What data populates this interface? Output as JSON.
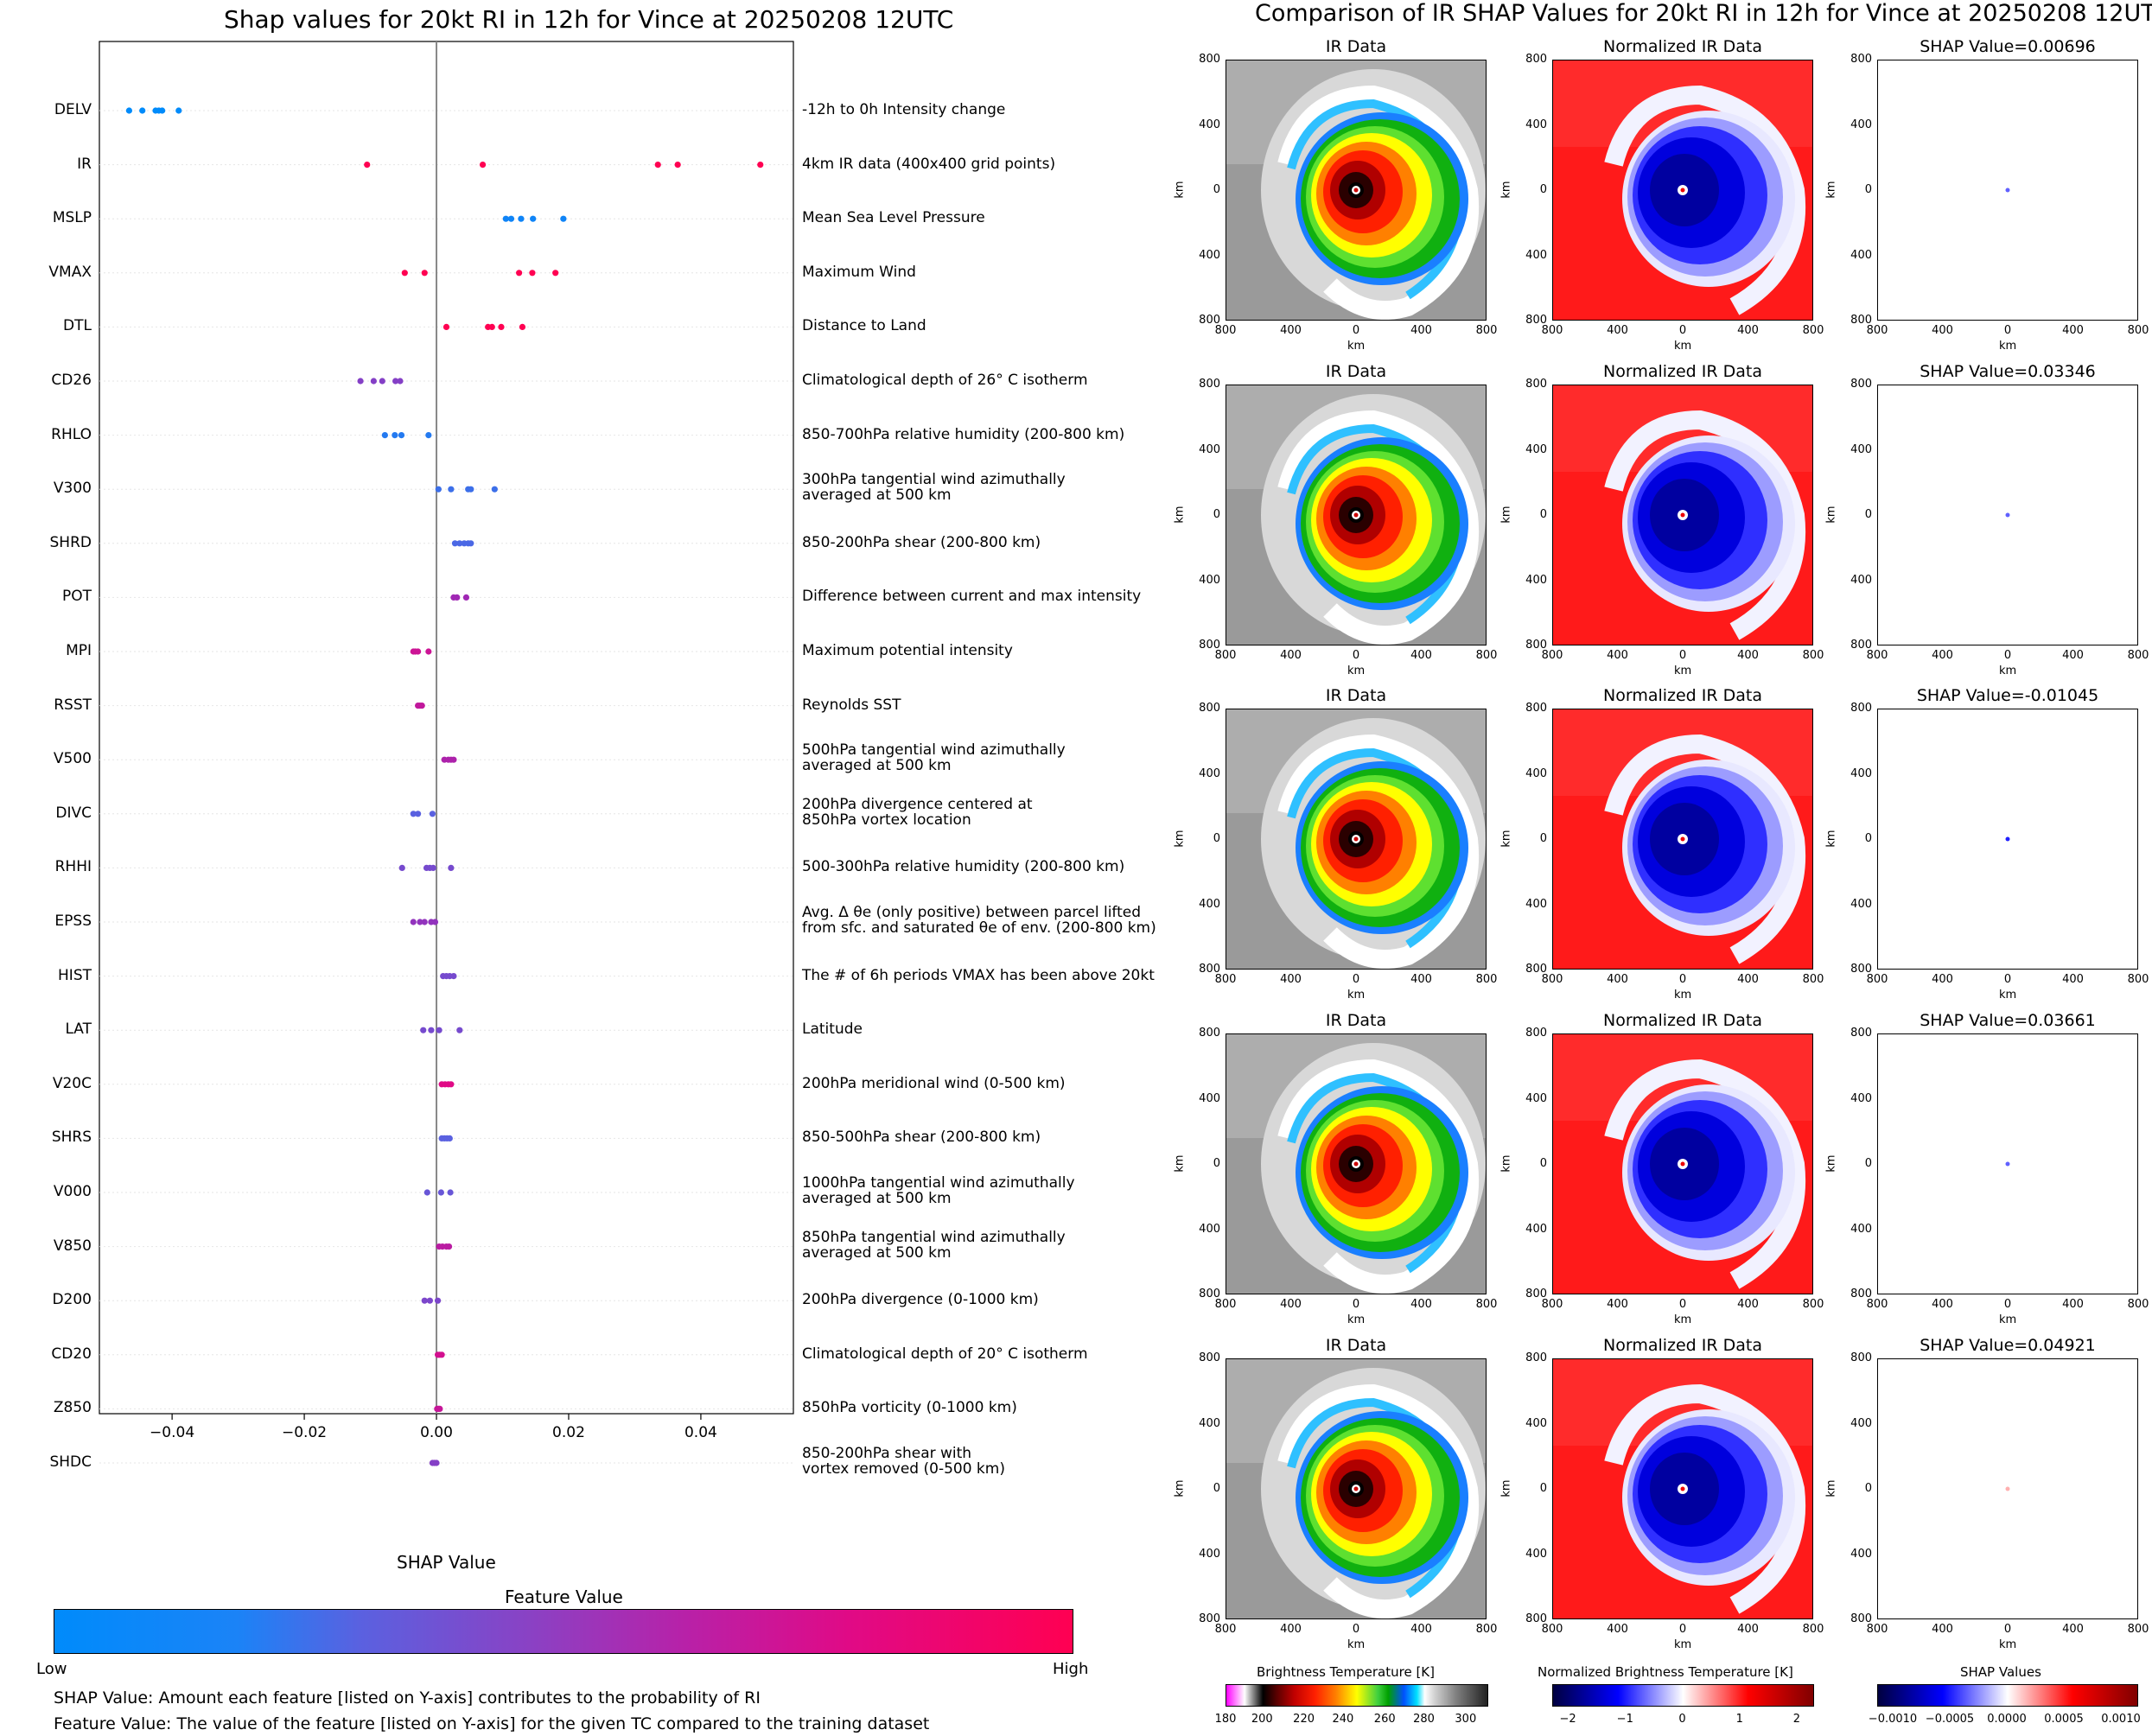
{
  "left": {
    "title": "Shap values for 20kt RI in 12h for Vince at 20250208 12UTC",
    "xlabel": "SHAP Value",
    "xticks": [
      "−0.04",
      "−0.02",
      "0.00",
      "0.02",
      "0.04"
    ],
    "colorbar": {
      "title": "Feature Value",
      "low": "Low",
      "high": "High"
    },
    "notes": [
      "SHAP Value: Amount each feature [listed on Y-axis] contributes to the probability of RI",
      "Feature Value: The value of the feature [listed on Y-axis] for the given TC compared to the training dataset"
    ],
    "features": [
      {
        "name": "DELV",
        "desc": [
          "-12h to 0h Intensity change"
        ]
      },
      {
        "name": "IR",
        "desc": [
          "4km IR data (400x400 grid points)"
        ]
      },
      {
        "name": "MSLP",
        "desc": [
          "Mean Sea Level Pressure"
        ]
      },
      {
        "name": "VMAX",
        "desc": [
          "Maximum Wind"
        ]
      },
      {
        "name": "DTL",
        "desc": [
          "Distance to Land"
        ]
      },
      {
        "name": "CD26",
        "desc": [
          "Climatological depth of 26° C isotherm"
        ]
      },
      {
        "name": "RHLO",
        "desc": [
          "850-700hPa relative humidity (200-800 km)"
        ]
      },
      {
        "name": "V300",
        "desc": [
          "300hPa tangential wind azimuthally",
          "averaged at 500 km"
        ]
      },
      {
        "name": "SHRD",
        "desc": [
          "850-200hPa shear (200-800 km)"
        ]
      },
      {
        "name": "POT",
        "desc": [
          "Difference between current and max intensity"
        ]
      },
      {
        "name": "MPI",
        "desc": [
          "Maximum potential intensity"
        ]
      },
      {
        "name": "RSST",
        "desc": [
          "Reynolds SST"
        ]
      },
      {
        "name": "V500",
        "desc": [
          "500hPa tangential wind azimuthally",
          "averaged at 500 km"
        ]
      },
      {
        "name": "DIVC",
        "desc": [
          "200hPa divergence centered at",
          "850hPa vortex location"
        ]
      },
      {
        "name": "RHHI",
        "desc": [
          "500-300hPa relative humidity (200-800 km)"
        ]
      },
      {
        "name": "EPSS",
        "desc": [
          "Avg. Δ θe (only positive) between parcel lifted",
          "from sfc. and saturated θe of env. (200-800 km)"
        ]
      },
      {
        "name": "HIST",
        "desc": [
          "The # of 6h periods VMAX has been above 20kt"
        ]
      },
      {
        "name": "LAT",
        "desc": [
          "Latitude"
        ]
      },
      {
        "name": "V20C",
        "desc": [
          "200hPa meridional wind (0-500 km)"
        ]
      },
      {
        "name": "SHRS",
        "desc": [
          "850-500hPa shear (200-800 km)"
        ]
      },
      {
        "name": "V000",
        "desc": [
          "1000hPa tangential wind azimuthally",
          "averaged at 500 km"
        ]
      },
      {
        "name": "V850",
        "desc": [
          "850hPa tangential wind azimuthally",
          "averaged at 500 km"
        ]
      },
      {
        "name": "D200",
        "desc": [
          "200hPa divergence (0-1000 km)"
        ]
      },
      {
        "name": "CD20",
        "desc": [
          "Climatological depth of 20° C isotherm"
        ]
      },
      {
        "name": "Z850",
        "desc": [
          "850hPa vorticity (0-1000 km)"
        ]
      },
      {
        "name": "SHDC",
        "desc": [
          "850-200hPa shear with",
          "vortex removed (0-500 km)"
        ]
      }
    ]
  },
  "right": {
    "title": "Comparison of IR SHAP Values for 20kt RI in 12h for Vince at 20250208 12UTC",
    "col_titles": [
      "IR Data",
      "Normalized IR Data"
    ],
    "shap_titles": [
      "SHAP Value=0.00696",
      "SHAP Value=0.03346",
      "SHAP Value=-0.01045",
      "SHAP Value=0.03661",
      "SHAP Value=0.04921"
    ],
    "axis_label": "km",
    "ticks": [
      "800",
      "400",
      "0",
      "400",
      "800"
    ],
    "colorbars": [
      {
        "title": "Brightness Temperature [K]",
        "ticks": [
          "180",
          "200",
          "220",
          "240",
          "260",
          "280",
          "300"
        ]
      },
      {
        "title": "Normalized Brightness Temperature [K]",
        "ticks": [
          "−2",
          "−1",
          "0",
          "1",
          "2"
        ]
      },
      {
        "title": "SHAP Values",
        "ticks": [
          "−0.0010",
          "−0.0005",
          "0.0000",
          "0.0005",
          "0.0010"
        ]
      }
    ]
  },
  "chart_data": [
    {
      "type": "scatter",
      "title": "Shap values for 20kt RI in 12h for Vince at 20250208 12UTC",
      "xlabel": "SHAP Value",
      "xlim": [
        -0.051,
        0.054
      ],
      "colorbar": "Feature Value (Low to High)",
      "series": [
        {
          "name": "DELV",
          "values": [
            -0.0465,
            -0.0445,
            -0.0425,
            -0.042,
            -0.0415,
            -0.039
          ],
          "level": 0.0
        },
        {
          "name": "IR",
          "values": [
            -0.0105,
            0.007,
            0.0335,
            0.0365,
            0.049
          ],
          "level": 1.0
        },
        {
          "name": "MSLP",
          "values": [
            0.0105,
            0.0113,
            0.0128,
            0.0146,
            0.0192
          ],
          "level": 0.05
        },
        {
          "name": "VMAX",
          "values": [
            -0.0048,
            -0.0018,
            0.0125,
            0.0145,
            0.018
          ],
          "level": 1.0
        },
        {
          "name": "DTL",
          "values": [
            0.0015,
            0.0078,
            0.0084,
            0.0098,
            0.013
          ],
          "level": 1.0
        },
        {
          "name": "CD26",
          "values": [
            -0.0115,
            -0.0095,
            -0.0082,
            -0.0062,
            -0.0055
          ],
          "level": 0.45
        },
        {
          "name": "RHLO",
          "values": [
            -0.0078,
            -0.0063,
            -0.0053,
            -0.0012
          ],
          "level": 0.12
        },
        {
          "name": "V300",
          "values": [
            0.0003,
            0.0022,
            0.0048,
            0.0052,
            0.0088
          ],
          "level": 0.2
        },
        {
          "name": "SHRD",
          "values": [
            0.0028,
            0.0035,
            0.0042,
            0.0048,
            0.0052
          ],
          "level": 0.25
        },
        {
          "name": "POT",
          "values": [
            0.0026,
            0.0031,
            0.0045
          ],
          "level": 0.55
        },
        {
          "name": "MPI",
          "values": [
            -0.0035,
            -0.0032,
            -0.0028,
            -0.0012
          ],
          "level": 0.72
        },
        {
          "name": "RSST",
          "values": [
            -0.0028,
            -0.0025,
            -0.0022
          ],
          "level": 0.68
        },
        {
          "name": "V500",
          "values": [
            0.0012,
            0.0018,
            0.0022,
            0.0026
          ],
          "level": 0.6
        },
        {
          "name": "DIVC",
          "values": [
            -0.0035,
            -0.0028,
            -0.0006
          ],
          "level": 0.3
        },
        {
          "name": "RHHI",
          "values": [
            -0.0052,
            -0.0015,
            -0.001,
            -0.0005,
            0.0022
          ],
          "level": 0.4
        },
        {
          "name": "EPSS",
          "values": [
            -0.0035,
            -0.0025,
            -0.0018,
            -0.0008,
            -0.0002
          ],
          "level": 0.5
        },
        {
          "name": "HIST",
          "values": [
            0.001,
            0.0015,
            0.002,
            0.0026
          ],
          "level": 0.4
        },
        {
          "name": "LAT",
          "values": [
            -0.002,
            -0.0008,
            0.0004,
            0.0035
          ],
          "level": 0.4
        },
        {
          "name": "V20C",
          "values": [
            0.0008,
            0.0013,
            0.0018,
            0.0022
          ],
          "level": 0.8
        },
        {
          "name": "SHRS",
          "values": [
            0.0008,
            0.0012,
            0.0016,
            0.002
          ],
          "level": 0.3
        },
        {
          "name": "V000",
          "values": [
            -0.0014,
            0.0007,
            0.0021
          ],
          "level": 0.35
        },
        {
          "name": "V850",
          "values": [
            0.0004,
            0.0009,
            0.0015,
            0.0019
          ],
          "level": 0.65
        },
        {
          "name": "D200",
          "values": [
            -0.0018,
            -0.001,
            0.0002
          ],
          "level": 0.42
        },
        {
          "name": "CD20",
          "values": [
            0.0002,
            0.0005,
            0.0008
          ],
          "level": 0.75
        },
        {
          "name": "Z850",
          "values": [
            0.0001,
            0.0003,
            0.0005
          ],
          "level": 0.7
        },
        {
          "name": "SHDC",
          "values": [
            -0.0006,
            -0.0003,
            0.0
          ],
          "level": 0.45
        }
      ]
    },
    {
      "type": "heatmap",
      "title": "Comparison of IR SHAP Values for 20kt RI in 12h for Vince at 20250208 12UTC",
      "rows": 5,
      "columns": [
        "IR Data",
        "Normalized IR Data",
        "SHAP Value"
      ],
      "shap_values": [
        0.00696,
        0.03346,
        -0.01045,
        0.03661,
        0.04921
      ],
      "xlim": [
        -800,
        800
      ],
      "ylim": [
        -800,
        800
      ],
      "units": "km"
    }
  ]
}
